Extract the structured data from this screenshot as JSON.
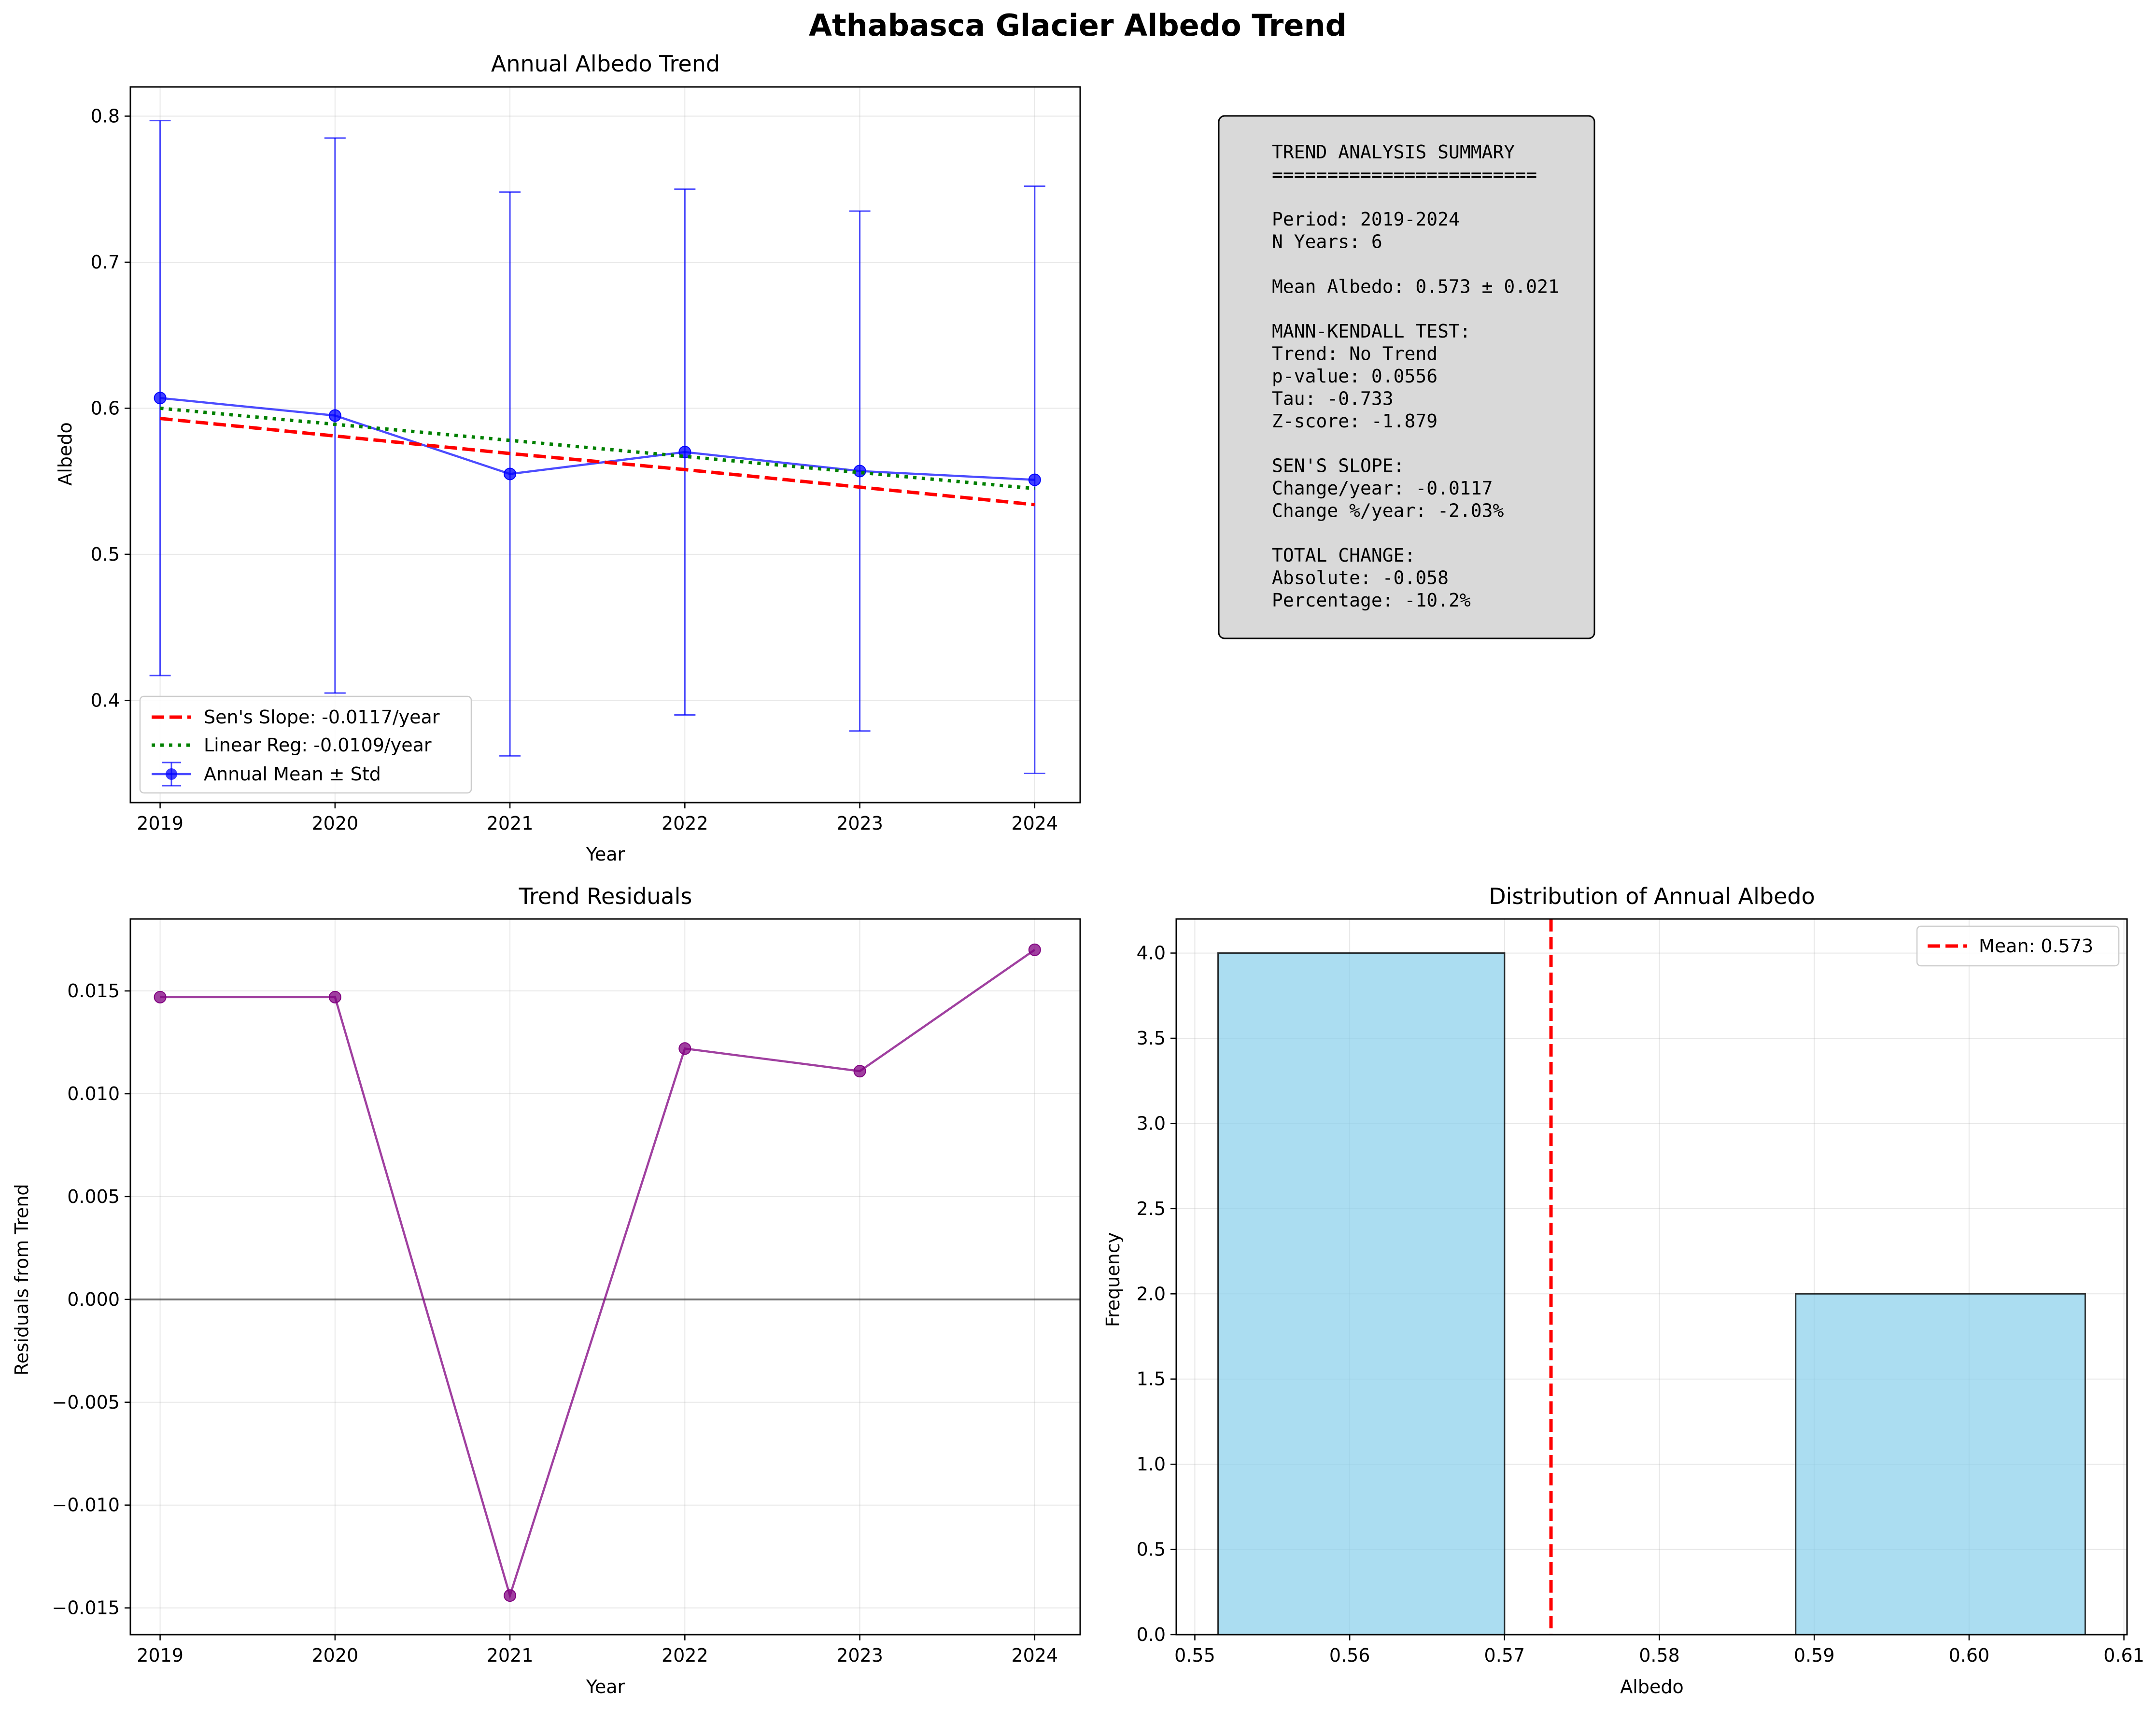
{
  "figure_title": "Athabasca Glacier Albedo Trend",
  "chart_data": [
    {
      "type": "line",
      "title": "Annual Albedo Trend",
      "xlabel": "Year",
      "ylabel": "Albedo",
      "xlim": [
        2018.83,
        2024.26
      ],
      "ylim": [
        0.33,
        0.82
      ],
      "x_ticks": [
        "2019",
        "2020",
        "2021",
        "2022",
        "2023",
        "2024"
      ],
      "y_ticks": [
        "0.4",
        "0.5",
        "0.6",
        "0.7",
        "0.8"
      ],
      "grid": true,
      "legend_position": "lower-left",
      "x": [
        2019,
        2020,
        2021,
        2022,
        2023,
        2024
      ],
      "series": [
        {
          "name": "Annual Mean ± Std",
          "kind": "errorbar",
          "color": "#0000ff",
          "values": [
            0.607,
            0.595,
            0.555,
            0.57,
            0.557,
            0.551
          ],
          "std": [
            0.19,
            0.19,
            0.193,
            0.18,
            0.178,
            0.201
          ]
        },
        {
          "name": "Sen's Slope: -0.0117/year",
          "kind": "dashed",
          "color": "#ff0000",
          "values": [
            0.593,
            0.581,
            0.569,
            0.558,
            0.546,
            0.534
          ]
        },
        {
          "name": "Linear Reg: -0.0109/year",
          "kind": "dotted",
          "color": "#008000",
          "values": [
            0.6,
            0.589,
            0.578,
            0.567,
            0.556,
            0.545
          ]
        }
      ]
    },
    {
      "type": "line",
      "title": "Trend Residuals",
      "xlabel": "Year",
      "ylabel": "Residuals from Trend",
      "xlim": [
        2018.83,
        2024.26
      ],
      "ylim": [
        -0.0163,
        0.0185
      ],
      "x_ticks": [
        "2019",
        "2020",
        "2021",
        "2022",
        "2023",
        "2024"
      ],
      "y_ticks": [
        "−0.015",
        "−0.010",
        "−0.005",
        "0.000",
        "0.005",
        "0.010",
        "0.015"
      ],
      "y_tick_values": [
        -0.015,
        -0.01,
        -0.005,
        0.0,
        0.005,
        0.01,
        0.015
      ],
      "grid": true,
      "zero_line": true,
      "x": [
        2019,
        2020,
        2021,
        2022,
        2023,
        2024
      ],
      "series": [
        {
          "color": "#800080",
          "values": [
            0.0147,
            0.0147,
            -0.0144,
            0.0122,
            0.0111,
            0.017
          ]
        }
      ]
    },
    {
      "type": "bar",
      "title": "Distribution of Annual Albedo",
      "xlabel": "Albedo",
      "ylabel": "Frequency",
      "xlim": [
        0.5488,
        0.6102
      ],
      "ylim": [
        0,
        4.2
      ],
      "x_ticks": [
        "0.55",
        "0.56",
        "0.57",
        "0.58",
        "0.59",
        "0.60",
        "0.61"
      ],
      "x_tick_values": [
        0.55,
        0.56,
        0.57,
        0.58,
        0.59,
        0.6,
        0.61
      ],
      "y_ticks": [
        "0.0",
        "0.5",
        "1.0",
        "1.5",
        "2.0",
        "2.5",
        "3.0",
        "3.5",
        "4.0"
      ],
      "y_tick_values": [
        0,
        0.5,
        1.0,
        1.5,
        2.0,
        2.5,
        3.0,
        3.5,
        4.0
      ],
      "grid": true,
      "legend_position": "top-right",
      "bins": [
        {
          "from": 0.5515,
          "to": 0.57,
          "count": 4
        },
        {
          "from": 0.57,
          "to": 0.5888,
          "count": 0
        },
        {
          "from": 0.5888,
          "to": 0.6075,
          "count": 2
        }
      ],
      "bar_color": "#87ceeb",
      "mean_line": {
        "value": 0.573,
        "label": "Mean: 0.573",
        "color": "#ff0000"
      }
    }
  ],
  "summary_box": {
    "lines": [
      "TREND ANALYSIS SUMMARY",
      "========================",
      "",
      "Period: 2019-2024",
      "N Years: 6",
      "",
      "Mean Albedo: 0.573 ± 0.021",
      "",
      "MANN-KENDALL TEST:",
      "Trend: No Trend",
      "p-value: 0.0556",
      "Tau: -0.733",
      "Z-score: -1.879",
      "",
      "SEN'S SLOPE:",
      "Change/year: -0.0117",
      "Change %/year: -2.03%",
      "",
      "TOTAL CHANGE:",
      "Absolute: -0.058",
      "Percentage: -10.2%"
    ]
  }
}
